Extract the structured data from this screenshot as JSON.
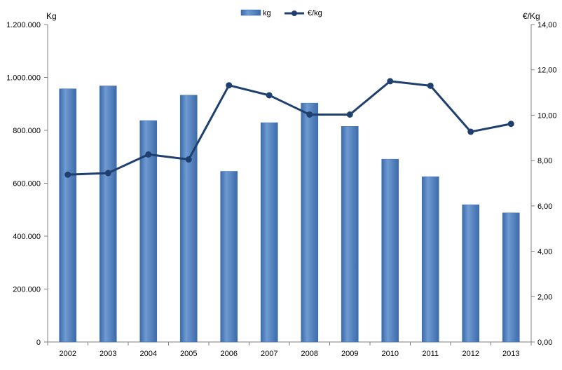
{
  "chart_data": {
    "type": "bar",
    "categories": [
      "2002",
      "2003",
      "2004",
      "2005",
      "2006",
      "2007",
      "2008",
      "2009",
      "2010",
      "2011",
      "2012",
      "2013"
    ],
    "series": [
      {
        "name": "kg",
        "type": "bar",
        "axis": "left",
        "color": "#4F81BD",
        "values": [
          957000,
          968000,
          837000,
          933000,
          645000,
          829000,
          903000,
          815000,
          691000,
          625000,
          519000,
          488000
        ]
      },
      {
        "name": "€/kg",
        "type": "line",
        "axis": "right",
        "color": "#1F3F6E",
        "values": [
          7.38,
          7.45,
          8.27,
          8.05,
          11.32,
          10.88,
          10.03,
          10.03,
          11.5,
          11.3,
          9.27,
          9.62
        ]
      }
    ],
    "y_left": {
      "label": "Kg",
      "ylim": [
        0,
        1200000
      ],
      "ticks": [
        "0",
        "200.000",
        "400.000",
        "600.000",
        "800.000",
        "1.000.000",
        "1.200.000"
      ]
    },
    "y_right": {
      "label": "€/Kg",
      "ylim": [
        0,
        14
      ],
      "ticks": [
        "0,00",
        "2,00",
        "4,00",
        "6,00",
        "8,00",
        "10,00",
        "12,00",
        "14,00"
      ]
    },
    "legend": {
      "position": "top-center",
      "entries": [
        "kg",
        "€/kg"
      ]
    },
    "grid": false
  }
}
